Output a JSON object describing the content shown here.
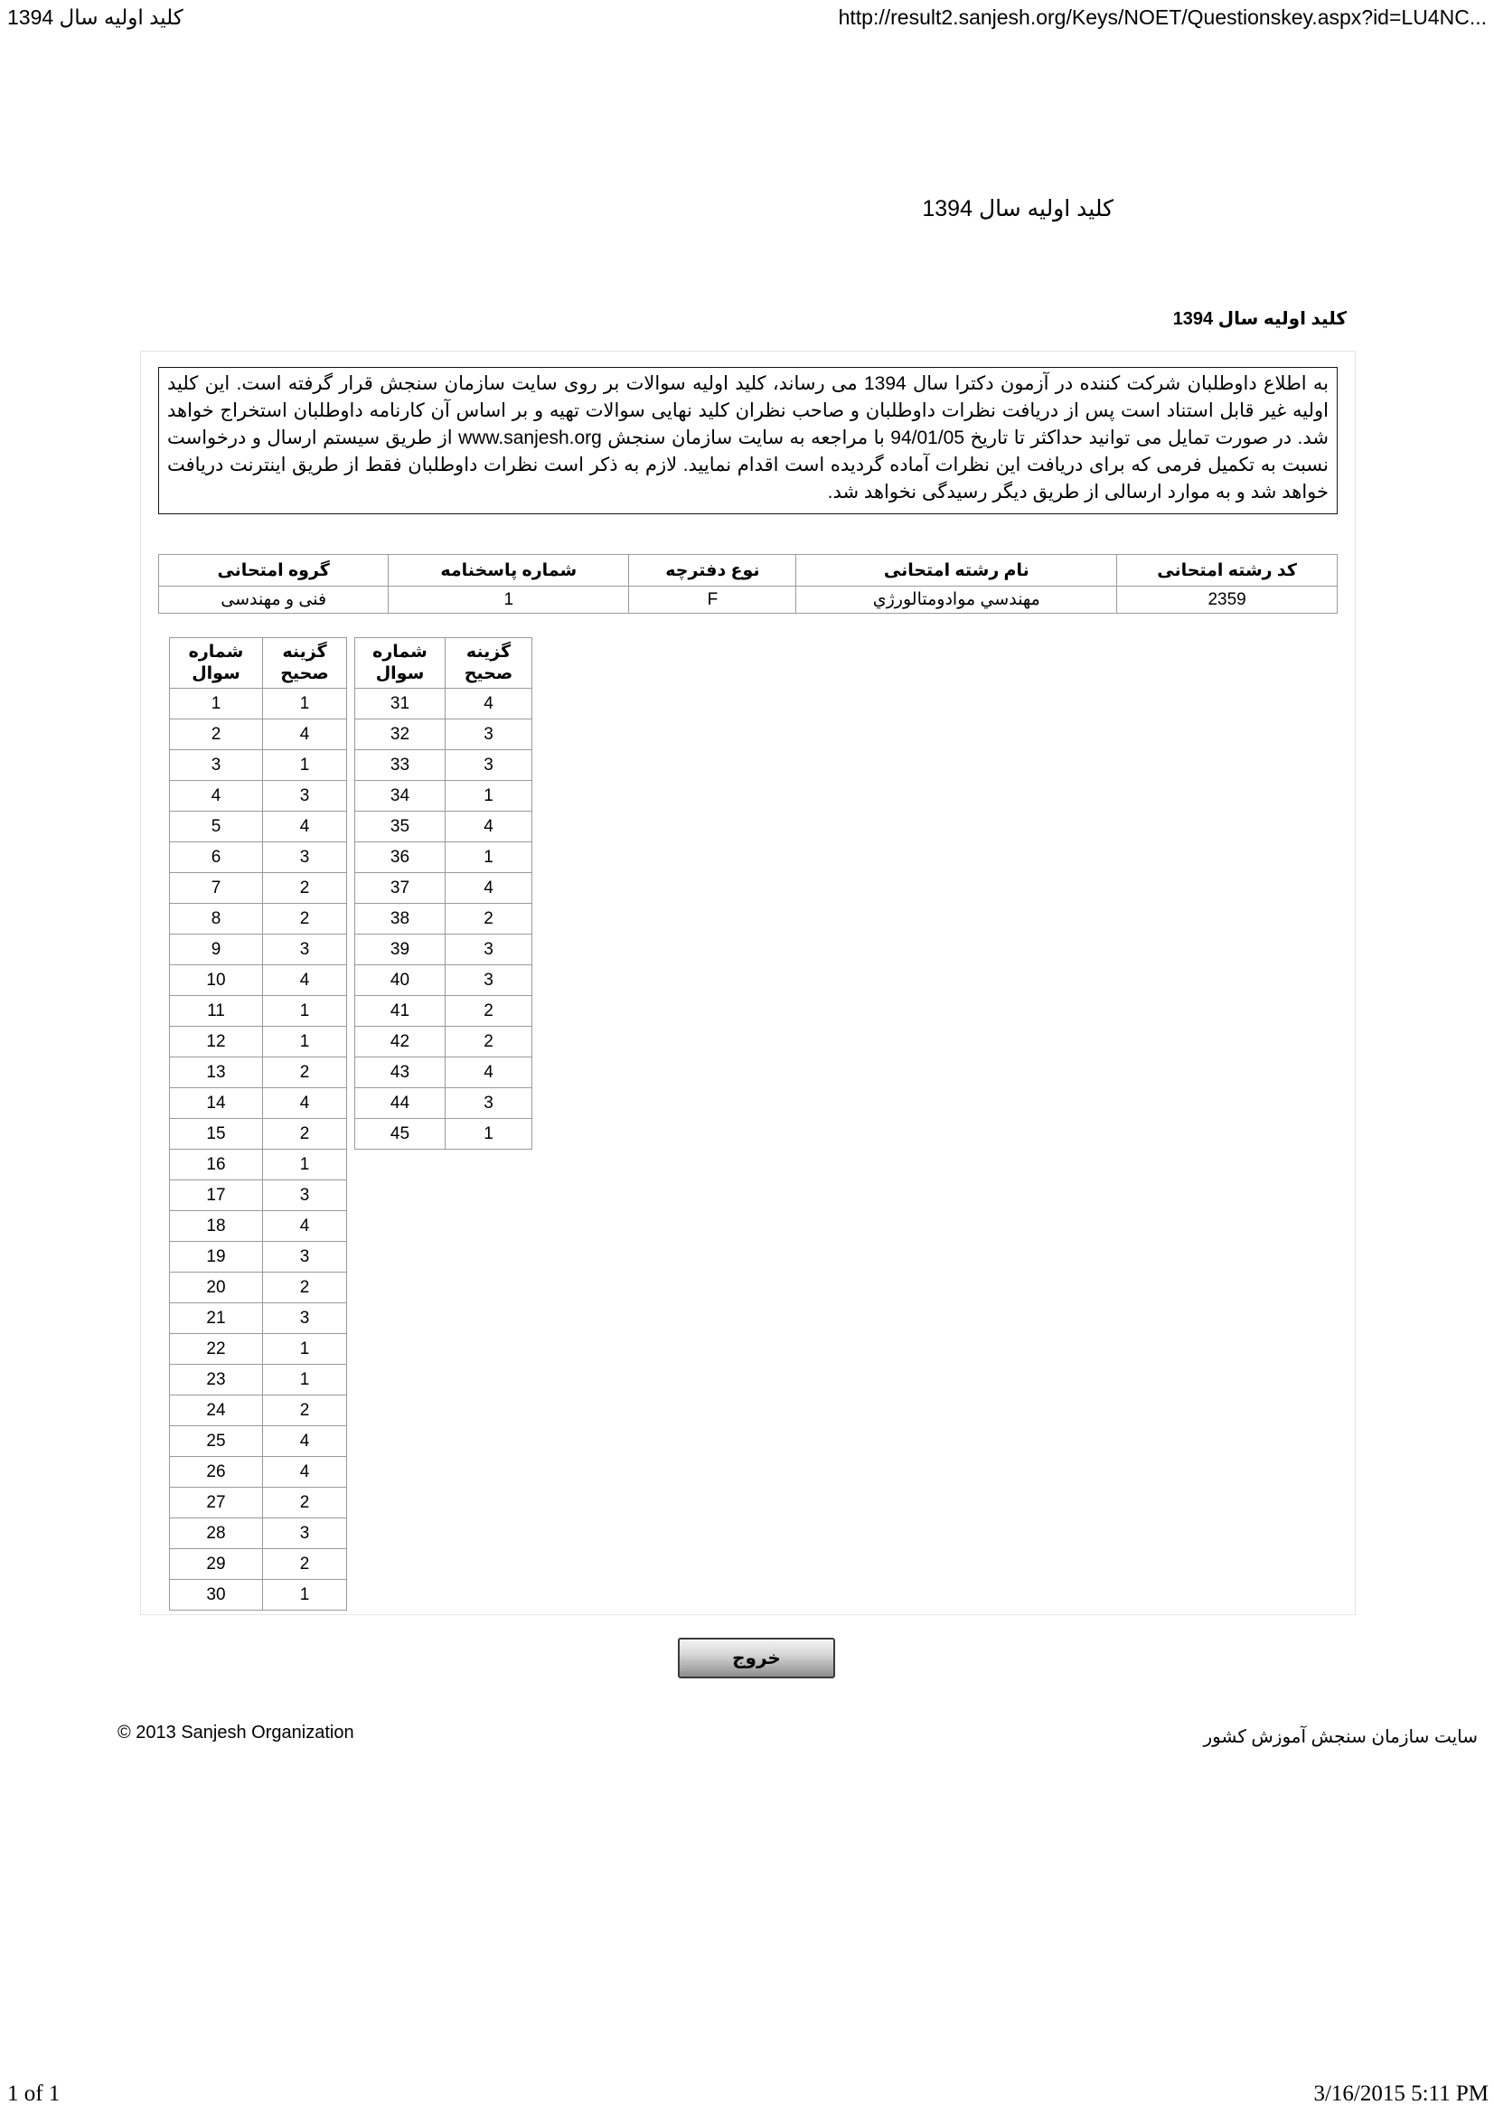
{
  "print_header": {
    "doc_title": "کلید اولیه سال 1394",
    "url": "http://result2.sanjesh.org/Keys/NOET/Questionskey.aspx?id=LU4NC..."
  },
  "title": "کلید اولیه سال 1394",
  "section_heading": "کلید اولیه سال 1394",
  "notice": "به اطلاع داوطلبان شرکت کننده در آزمون دکترا سال 1394 می رساند، کلید اولیه سوالات بر روی سایت سازمان سنجش قرار گرفته است. این کلید اولیه غیر قابل استناد است پس از دریافت نظرات داوطلبان و صاحب نظران کلید نهایی سوالات تهیه و بر اساس آن کارنامه داوطلبان استخراج خواهد شد. در صورت تمایل می توانید حداکثر تا تاریخ 94/01/05 با مراجعه به سایت سازمان سنجش www.sanjesh.org از طریق  سیستم ارسال و درخواست نسبت به تکمیل فرمی که برای دریافت این نظرات آماده گردیده است اقدام نمایید. لازم به ذکر است نظرات داوطلبان فقط از طریق اینترنت دریافت خواهد شد و به موارد ارسالی از طریق دیگر رسیدگی نخواهد شد.",
  "info_table": {
    "headers": [
      "کد رشته امتحانی",
      "نام رشته امتحانی",
      "نوع دفترچه",
      "شماره پاسخنامه",
      "گروه امتحانی"
    ],
    "row": [
      "2359",
      "مهندسي موادومتالورژي",
      "F",
      "1",
      "فنی و مهندسی"
    ]
  },
  "answer_key": {
    "question_header": "شماره\nسوال",
    "answer_header": "گزینه\nصحیح",
    "table1": [
      [
        1,
        1
      ],
      [
        2,
        4
      ],
      [
        3,
        1
      ],
      [
        4,
        3
      ],
      [
        5,
        4
      ],
      [
        6,
        3
      ],
      [
        7,
        2
      ],
      [
        8,
        2
      ],
      [
        9,
        3
      ],
      [
        10,
        4
      ],
      [
        11,
        1
      ],
      [
        12,
        1
      ],
      [
        13,
        2
      ],
      [
        14,
        4
      ],
      [
        15,
        2
      ],
      [
        16,
        1
      ],
      [
        17,
        3
      ],
      [
        18,
        4
      ],
      [
        19,
        3
      ],
      [
        20,
        2
      ],
      [
        21,
        3
      ],
      [
        22,
        1
      ],
      [
        23,
        1
      ],
      [
        24,
        2
      ],
      [
        25,
        4
      ],
      [
        26,
        4
      ],
      [
        27,
        2
      ],
      [
        28,
        3
      ],
      [
        29,
        2
      ],
      [
        30,
        1
      ]
    ],
    "table2": [
      [
        31,
        4
      ],
      [
        32,
        3
      ],
      [
        33,
        3
      ],
      [
        34,
        1
      ],
      [
        35,
        4
      ],
      [
        36,
        1
      ],
      [
        37,
        4
      ],
      [
        38,
        2
      ],
      [
        39,
        3
      ],
      [
        40,
        3
      ],
      [
        41,
        2
      ],
      [
        42,
        2
      ],
      [
        43,
        4
      ],
      [
        44,
        3
      ],
      [
        45,
        1
      ]
    ]
  },
  "exit_button_label": "خروج",
  "footer": {
    "copyright": "© 2013 Sanjesh Organization",
    "site_name": "سایت سازمان سنجش آموزش کشور"
  },
  "print_footer": {
    "page": "1 of 1",
    "datetime": "3/16/2015 5:11 PM"
  }
}
